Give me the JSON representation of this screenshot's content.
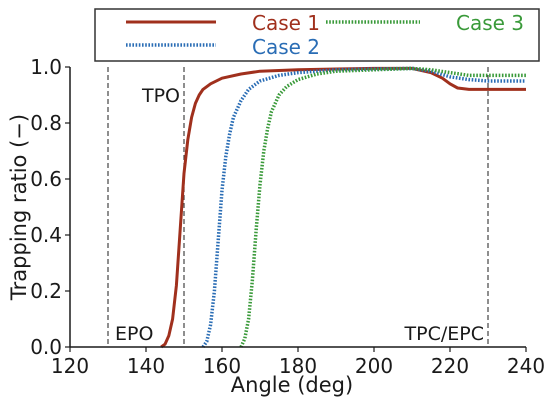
{
  "chart_data": {
    "type": "line",
    "xlabel": "Angle (deg)",
    "ylabel": "Trapping ratio (−)",
    "xlim": [
      120,
      240
    ],
    "ylim": [
      0,
      1.0
    ],
    "x_ticks": [
      "120",
      "140",
      "160",
      "180",
      "200",
      "220",
      "240"
    ],
    "y_ticks": [
      "0.0",
      "0.2",
      "0.4",
      "0.6",
      "0.8",
      "1.0"
    ],
    "grid": false,
    "legend_position": "top",
    "vertical_lines": [
      {
        "x": 130,
        "label": "EPO",
        "label_y": 0.05
      },
      {
        "x": 150,
        "label": "TPO",
        "label_y": 0.9
      },
      {
        "x": 230,
        "label": "TPC/EPC",
        "label_y": 0.05
      }
    ],
    "series": [
      {
        "name": "Case 1",
        "color": "#a0301d",
        "style": "solid",
        "x": [
          144,
          145,
          146,
          147,
          148,
          149,
          150,
          151,
          152,
          153,
          154,
          155,
          157,
          160,
          165,
          170,
          180,
          190,
          200,
          210,
          215,
          218,
          220,
          222,
          225,
          230,
          235,
          240
        ],
        "y": [
          0.0,
          0.01,
          0.04,
          0.1,
          0.22,
          0.42,
          0.62,
          0.74,
          0.82,
          0.87,
          0.9,
          0.92,
          0.94,
          0.96,
          0.975,
          0.985,
          0.99,
          0.993,
          0.995,
          0.995,
          0.98,
          0.96,
          0.94,
          0.925,
          0.92,
          0.92,
          0.92,
          0.92
        ]
      },
      {
        "name": "Case 2",
        "color": "#2a6db5",
        "style": "dotted",
        "x": [
          155,
          156,
          157,
          158,
          159,
          160,
          161,
          162,
          163,
          165,
          167,
          170,
          175,
          180,
          190,
          200,
          210,
          215,
          220,
          225,
          230,
          235,
          240
        ],
        "y": [
          0.0,
          0.02,
          0.08,
          0.2,
          0.38,
          0.56,
          0.68,
          0.76,
          0.82,
          0.88,
          0.92,
          0.95,
          0.97,
          0.98,
          0.99,
          0.993,
          0.995,
          0.985,
          0.965,
          0.955,
          0.95,
          0.95,
          0.95
        ]
      },
      {
        "name": "Case 3",
        "color": "#3a9a3a",
        "style": "dotted",
        "x": [
          165,
          166,
          167,
          168,
          169,
          170,
          171,
          172,
          173,
          175,
          177,
          180,
          185,
          190,
          200,
          210,
          215,
          220,
          225,
          230,
          235,
          240
        ],
        "y": [
          0.0,
          0.03,
          0.1,
          0.24,
          0.42,
          0.58,
          0.7,
          0.78,
          0.84,
          0.9,
          0.93,
          0.955,
          0.975,
          0.985,
          0.99,
          0.995,
          0.99,
          0.98,
          0.97,
          0.97,
          0.97,
          0.97
        ]
      }
    ]
  }
}
